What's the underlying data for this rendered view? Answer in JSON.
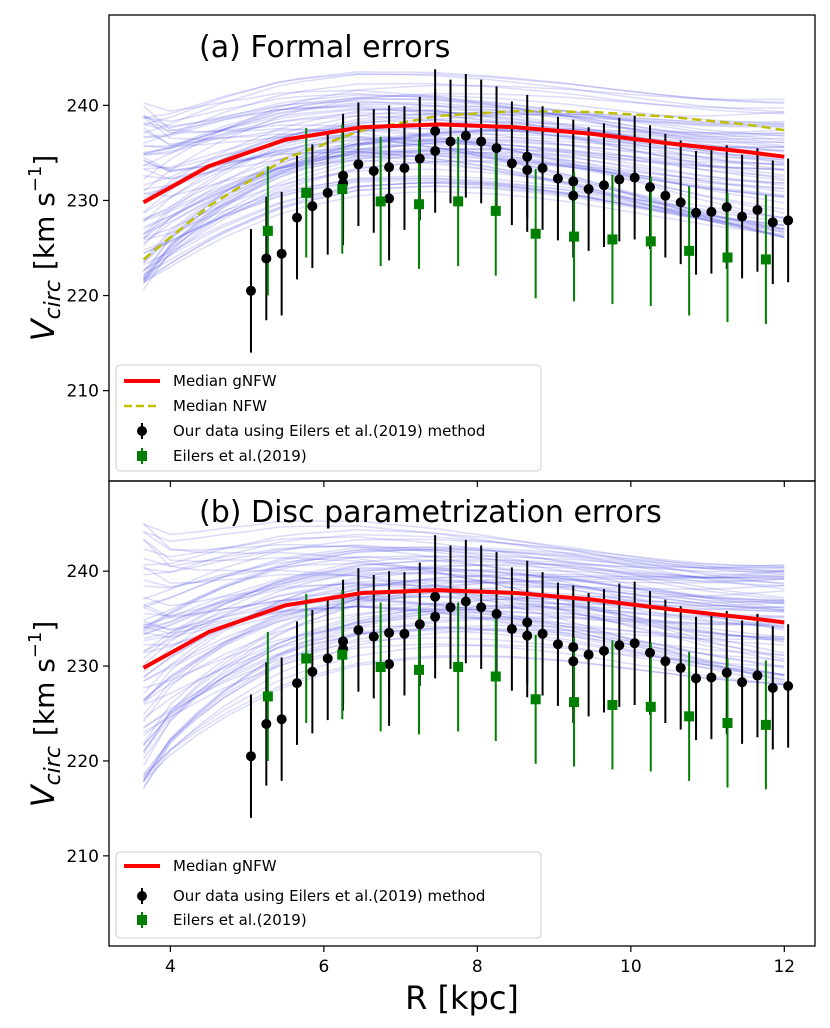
{
  "chart_data": {
    "type": "line",
    "shared_xlabel": "R [kpc]",
    "x_ticks": [
      4,
      6,
      8,
      10,
      12
    ],
    "xlim": [
      3.2,
      12.4
    ],
    "panels": [
      {
        "title": "(a) Formal errors",
        "ylabel_main": "V",
        "ylabel_sub": "circ",
        "ylabel_unit": "[km s",
        "ylabel_exp": "−1",
        "ylabel_close": "]",
        "ylim": [
          200.5,
          249.5
        ],
        "y_ticks": [
          210,
          220,
          230,
          240
        ],
        "legend": [
          {
            "label": "Median gNFW",
            "kind": "line",
            "color": "#ff0000"
          },
          {
            "label": "Median NFW",
            "kind": "dashed",
            "color": "#bfbf00"
          },
          {
            "label": "Our data using Eilers et al.(2019) method",
            "kind": "point",
            "color": "#000000"
          },
          {
            "label": "Eilers et al.(2019)",
            "kind": "square",
            "color": "#008000"
          }
        ],
        "median_gnfw": {
          "x": [
            3.65,
            4.5,
            5.5,
            6.5,
            7.5,
            8.5,
            9.5,
            10.5,
            11.5,
            12.0
          ],
          "y": [
            229.8,
            233.6,
            236.4,
            237.7,
            238.0,
            237.7,
            237.0,
            236.0,
            235.1,
            234.6
          ]
        },
        "median_nfw": {
          "x": [
            3.65,
            4.5,
            5.5,
            6.5,
            7.5,
            8.5,
            9.5,
            10.5,
            11.5,
            12.0
          ],
          "y": [
            223.8,
            229.4,
            234.4,
            237.4,
            238.9,
            239.4,
            239.3,
            238.8,
            238.0,
            237.4
          ]
        },
        "ensemble_curves": {
          "color": "#4f4fe8",
          "count": 80,
          "start_min": 219.5,
          "start_max": 240.5,
          "end_min": 226.0,
          "end_max": 241.0
        }
      },
      {
        "title": "(b) Disc parametrization errors",
        "ylabel_main": "V",
        "ylabel_sub": "circ",
        "ylabel_unit": "[km s",
        "ylabel_exp": "−1",
        "ylabel_close": "]",
        "ylim": [
          200.5,
          249.5
        ],
        "y_ticks": [
          210,
          220,
          230,
          240
        ],
        "legend": [
          {
            "label": "Median gNFW",
            "kind": "line",
            "color": "#ff0000"
          },
          {
            "label": "Our data using Eilers et al.(2019) method",
            "kind": "point",
            "color": "#000000"
          },
          {
            "label": "Eilers et al.(2019)",
            "kind": "square",
            "color": "#008000"
          }
        ],
        "median_gnfw": {
          "x": [
            3.65,
            4.5,
            5.5,
            6.5,
            7.5,
            8.5,
            9.5,
            10.5,
            11.5,
            12.0
          ],
          "y": [
            229.8,
            233.6,
            236.4,
            237.7,
            238.0,
            237.7,
            237.0,
            236.0,
            235.1,
            234.6
          ]
        },
        "ensemble_curves": {
          "color": "#4f4fe8",
          "count": 80,
          "start_min": 217.0,
          "start_max": 246.0,
          "end_min": 228.0,
          "end_max": 241.0
        }
      }
    ],
    "our_data": {
      "name": "Our data using Eilers et al.(2019) method",
      "x": [
        5.05,
        5.25,
        5.45,
        5.65,
        5.85,
        6.05,
        6.25,
        6.45,
        6.65,
        6.85,
        7.05,
        7.25,
        7.45,
        7.65,
        7.85,
        8.05,
        8.25,
        8.45,
        8.65,
        8.85,
        9.05,
        9.25,
        9.45,
        9.65,
        9.85,
        10.05,
        10.25,
        10.45,
        10.65,
        10.85,
        11.05,
        11.25,
        11.45,
        11.65,
        11.85,
        12.05,
        6.25,
        6.85,
        7.45,
        8.65,
        9.25
      ],
      "y": [
        220.5,
        223.9,
        224.4,
        228.2,
        229.4,
        230.8,
        232.6,
        233.8,
        233.1,
        233.5,
        233.4,
        234.4,
        237.3,
        236.2,
        236.8,
        236.2,
        235.5,
        233.9,
        234.6,
        233.4,
        232.3,
        232.0,
        231.2,
        231.6,
        232.2,
        232.4,
        231.4,
        230.5,
        229.8,
        228.7,
        228.8,
        229.3,
        228.3,
        229.0,
        227.7,
        227.9,
        231.8,
        230.2,
        235.2,
        233.2,
        230.5
      ],
      "err": [
        6.5,
        6.5,
        6.5,
        6.5,
        6.5,
        6.5,
        6.5,
        6.5,
        6.5,
        6.5,
        6.5,
        6.5,
        6.5,
        6.5,
        6.5,
        6.5,
        6.5,
        6.5,
        6.5,
        6.5,
        6.5,
        6.5,
        6.5,
        6.5,
        6.5,
        6.5,
        6.5,
        6.5,
        6.5,
        6.5,
        6.5,
        6.5,
        6.5,
        6.5,
        6.5,
        6.5,
        6.5,
        6.5,
        6.5,
        6.5,
        6.5
      ]
    },
    "eilers_data": {
      "name": "Eilers et al.(2019)",
      "x": [
        5.27,
        5.77,
        6.24,
        6.74,
        7.24,
        7.75,
        8.24,
        8.76,
        9.26,
        9.76,
        10.26,
        10.76,
        11.26,
        11.76
      ],
      "y": [
        226.8,
        230.8,
        231.2,
        229.9,
        229.6,
        229.9,
        228.9,
        226.5,
        226.2,
        225.9,
        225.7,
        224.7,
        224.0,
        223.8
      ],
      "err": [
        6.8,
        6.8,
        6.8,
        6.8,
        6.8,
        6.8,
        6.8,
        6.8,
        6.8,
        6.8,
        6.8,
        6.8,
        6.8,
        6.8
      ]
    }
  }
}
